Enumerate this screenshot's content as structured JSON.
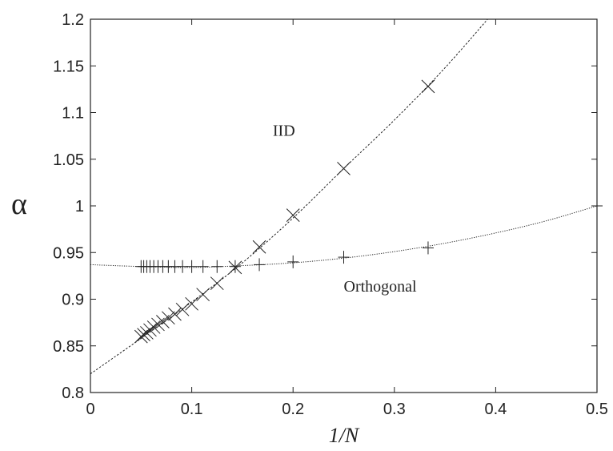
{
  "chart_data": {
    "type": "scatter",
    "xlabel": "1/N",
    "ylabel": "α",
    "xlim": [
      0,
      0.5
    ],
    "ylim": [
      0.8,
      1.2
    ],
    "x_ticks": [
      "0",
      "0.1",
      "0.2",
      "0.3",
      "0.4",
      "0.5"
    ],
    "y_ticks": [
      "0.8",
      "0.85",
      "0.9",
      "0.95",
      "1",
      "1.05",
      "1.1",
      "1.15",
      "1.2"
    ],
    "grid": false,
    "series": [
      {
        "name": "IID",
        "marker": "x",
        "x": [
          0.05,
          0.0526,
          0.0556,
          0.0588,
          0.0625,
          0.0667,
          0.0714,
          0.0769,
          0.0833,
          0.0909,
          0.1,
          0.1111,
          0.125,
          0.1429,
          0.1667,
          0.2,
          0.25,
          0.3333
        ],
        "y": [
          0.86,
          0.862,
          0.864,
          0.867,
          0.87,
          0.873,
          0.876,
          0.88,
          0.884,
          0.889,
          0.895,
          0.905,
          0.917,
          0.934,
          0.956,
          0.99,
          1.04,
          1.128
        ],
        "fit": {
          "x": [
            0,
            0.05,
            0.1,
            0.15,
            0.2,
            0.25,
            0.3,
            0.35,
            0.4
          ],
          "y": [
            0.82,
            0.858,
            0.897,
            0.939,
            0.987,
            1.04,
            1.092,
            1.148,
            1.21
          ]
        }
      },
      {
        "name": "Orthogonal",
        "marker": "+",
        "x": [
          0.05,
          0.0526,
          0.0556,
          0.0588,
          0.0625,
          0.0667,
          0.0714,
          0.0769,
          0.0833,
          0.0909,
          0.1,
          0.1111,
          0.125,
          0.1429,
          0.1667,
          0.2,
          0.25,
          0.3333,
          0.5
        ],
        "y": [
          0.935,
          0.935,
          0.935,
          0.935,
          0.935,
          0.935,
          0.935,
          0.935,
          0.935,
          0.935,
          0.935,
          0.935,
          0.935,
          0.935,
          0.937,
          0.94,
          0.945,
          0.955,
          1.0
        ],
        "fit": {
          "x": [
            0,
            0.05,
            0.1,
            0.15,
            0.2,
            0.25,
            0.3,
            0.35,
            0.4,
            0.45,
            0.5
          ],
          "y": [
            0.937,
            0.935,
            0.934,
            0.936,
            0.939,
            0.944,
            0.951,
            0.96,
            0.971,
            0.984,
            1.0
          ]
        }
      }
    ],
    "annotations": [
      {
        "text": "IID",
        "x": 0.18,
        "y": 1.075
      },
      {
        "text": "Orthogonal",
        "x": 0.25,
        "y": 0.908
      }
    ]
  }
}
